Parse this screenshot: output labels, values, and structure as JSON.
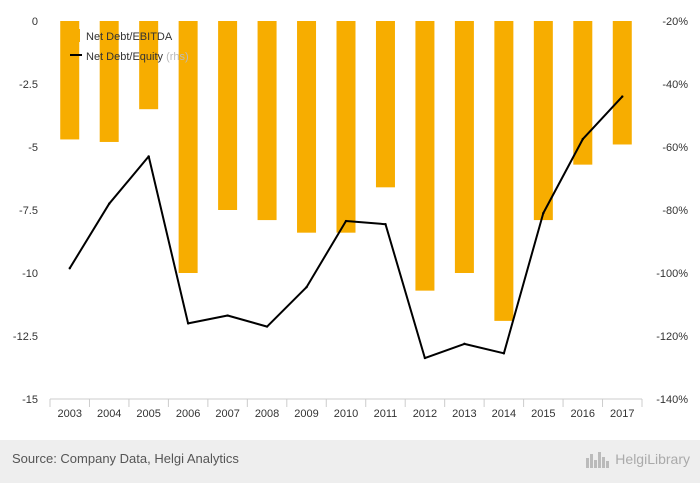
{
  "chart_data": {
    "type": "bar+line",
    "categories": [
      "2003",
      "2004",
      "2005",
      "2006",
      "2007",
      "2008",
      "2009",
      "2010",
      "2011",
      "2012",
      "2013",
      "2014",
      "2015",
      "2016",
      "2017"
    ],
    "series": [
      {
        "name": "Net Debt/EBITDA",
        "type": "bar",
        "axis": "left",
        "color": "#f7ad00",
        "values": [
          -4.7,
          -4.8,
          -3.5,
          -10.0,
          -7.5,
          -7.9,
          -8.4,
          -8.4,
          -6.6,
          -10.7,
          -10.0,
          -11.9,
          -7.9,
          -5.7,
          -4.9
        ]
      },
      {
        "name": "Net Debt/Equity",
        "type": "line",
        "axis": "right",
        "color": "#000000",
        "values": [
          -98.5,
          -78,
          -63,
          -116,
          -113.5,
          -117,
          -104.5,
          -83.5,
          -84.5,
          -127,
          -122.5,
          -125.5,
          -81,
          -57.5,
          -44
        ]
      }
    ],
    "legend_rhs_suffix": " (rhs)",
    "y_left": {
      "min": -15,
      "max": 0,
      "ticks": [
        0,
        -2.5,
        -5,
        -7.5,
        -10,
        -12.5,
        -15
      ],
      "tick_labels": [
        "0",
        "-2.5",
        "-5",
        "-7.5",
        "-10",
        "-12.5",
        "-15"
      ]
    },
    "y_right": {
      "min": -140,
      "max": -20,
      "ticks": [
        -20,
        -40,
        -60,
        -80,
        -100,
        -120,
        -140
      ],
      "tick_labels": [
        "-20%",
        "-40%",
        "-60%",
        "-80%",
        "-100%",
        "-120%",
        "-140%"
      ]
    },
    "grid": false,
    "legend_position": "top-left"
  },
  "footer": {
    "source": "Source: Company Data, Helgi Analytics",
    "logo_text": "HelgiLibrary"
  }
}
